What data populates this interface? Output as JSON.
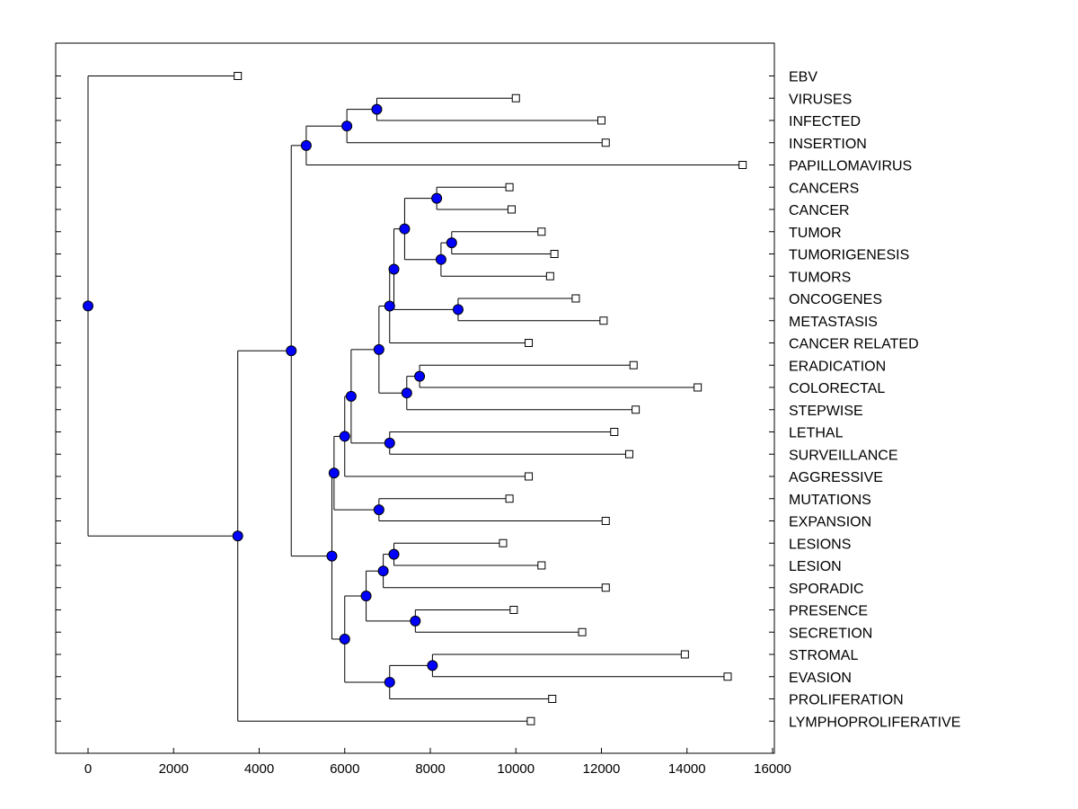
{
  "chart_data": {
    "type": "dendrogram",
    "title": "",
    "xlabel": "",
    "ylabel": "",
    "xlim": [
      -750,
      16000
    ],
    "xticks": [
      0,
      2000,
      4000,
      6000,
      8000,
      10000,
      12000,
      14000,
      16000
    ],
    "xtick_labels": [
      "0",
      "2000",
      "4000",
      "6000",
      "8000",
      "10000",
      "12000",
      "14000",
      "16000"
    ],
    "colors": {
      "node": "#0000ff",
      "line": "#000000",
      "leaf": "#ffffff"
    },
    "leaves": [
      {
        "label": "EBV",
        "value": 3500
      },
      {
        "label": "VIRUSES",
        "value": 10000
      },
      {
        "label": "INFECTED",
        "value": 12000
      },
      {
        "label": "INSERTION",
        "value": 12100
      },
      {
        "label": "PAPILLOMAVIRUS",
        "value": 15300
      },
      {
        "label": "CANCERS",
        "value": 9850
      },
      {
        "label": "CANCER",
        "value": 9900
      },
      {
        "label": "TUMOR",
        "value": 10600
      },
      {
        "label": "TUMORIGENESIS",
        "value": 10900
      },
      {
        "label": "TUMORS",
        "value": 10800
      },
      {
        "label": "ONCOGENES",
        "value": 11400
      },
      {
        "label": "METASTASIS",
        "value": 12050
      },
      {
        "label": "CANCER RELATED",
        "value": 10300
      },
      {
        "label": "ERADICATION",
        "value": 12750
      },
      {
        "label": "COLORECTAL",
        "value": 14250
      },
      {
        "label": "STEPWISE",
        "value": 12800
      },
      {
        "label": "LETHAL",
        "value": 12300
      },
      {
        "label": "SURVEILLANCE",
        "value": 12650
      },
      {
        "label": "AGGRESSIVE",
        "value": 10300
      },
      {
        "label": "MUTATIONS",
        "value": 9850
      },
      {
        "label": "EXPANSION",
        "value": 12100
      },
      {
        "label": "LESIONS",
        "value": 9700
      },
      {
        "label": "LESION",
        "value": 10600
      },
      {
        "label": "SPORADIC",
        "value": 12100
      },
      {
        "label": "PRESENCE",
        "value": 9950
      },
      {
        "label": "SECRETION",
        "value": 11550
      },
      {
        "label": "STROMAL",
        "value": 13950
      },
      {
        "label": "EVASION",
        "value": 14950
      },
      {
        "label": "PROLIFERATION",
        "value": 10850
      },
      {
        "label": "LYMPHOPROLIFERATIVE",
        "value": 10350
      }
    ],
    "merges": [
      {
        "id": "n1",
        "value": 6750,
        "children": [
          "VIRUSES",
          "INFECTED"
        ]
      },
      {
        "id": "n2",
        "value": 6050,
        "children": [
          "n1",
          "INSERTION"
        ]
      },
      {
        "id": "n3",
        "value": 5100,
        "children": [
          "n2",
          "PAPILLOMAVIRUS"
        ]
      },
      {
        "id": "n4",
        "value": 8150,
        "children": [
          "CANCERS",
          "CANCER"
        ]
      },
      {
        "id": "n5",
        "value": 8500,
        "children": [
          "TUMOR",
          "TUMORIGENESIS"
        ]
      },
      {
        "id": "n6",
        "value": 8250,
        "children": [
          "n5",
          "TUMORS"
        ]
      },
      {
        "id": "n7",
        "value": 7400,
        "children": [
          "n4",
          "n6"
        ]
      },
      {
        "id": "n8",
        "value": 8650,
        "children": [
          "ONCOGENES",
          "METASTASIS"
        ]
      },
      {
        "id": "n9",
        "value": 7150,
        "children": [
          "n7",
          "n8"
        ]
      },
      {
        "id": "n10",
        "value": 7050,
        "children": [
          "n9",
          "CANCER RELATED"
        ]
      },
      {
        "id": "n11",
        "value": 7750,
        "children": [
          "ERADICATION",
          "COLORECTAL"
        ]
      },
      {
        "id": "n12",
        "value": 7450,
        "children": [
          "n11",
          "STEPWISE"
        ]
      },
      {
        "id": "n13",
        "value": 6800,
        "children": [
          "n10",
          "n12"
        ]
      },
      {
        "id": "n14",
        "value": 7050,
        "children": [
          "LETHAL",
          "SURVEILLANCE"
        ]
      },
      {
        "id": "n15",
        "value": 6150,
        "children": [
          "n13",
          "n14"
        ]
      },
      {
        "id": "n16",
        "value": 6000,
        "children": [
          "n15",
          "AGGRESSIVE"
        ]
      },
      {
        "id": "n17",
        "value": 6800,
        "children": [
          "MUTATIONS",
          "EXPANSION"
        ]
      },
      {
        "id": "n18",
        "value": 5750,
        "children": [
          "n16",
          "n17"
        ]
      },
      {
        "id": "n19",
        "value": 7150,
        "children": [
          "LESIONS",
          "LESION"
        ]
      },
      {
        "id": "n20",
        "value": 6900,
        "children": [
          "n19",
          "SPORADIC"
        ]
      },
      {
        "id": "n21",
        "value": 7650,
        "children": [
          "PRESENCE",
          "SECRETION"
        ]
      },
      {
        "id": "n22",
        "value": 6500,
        "children": [
          "n20",
          "n21"
        ]
      },
      {
        "id": "n23",
        "value": 8050,
        "children": [
          "STROMAL",
          "EVASION"
        ]
      },
      {
        "id": "n24",
        "value": 7050,
        "children": [
          "n23",
          "PROLIFERATION"
        ]
      },
      {
        "id": "n25",
        "value": 6000,
        "children": [
          "n22",
          "n24"
        ]
      },
      {
        "id": "n26",
        "value": 5700,
        "children": [
          "n18",
          "n25"
        ]
      },
      {
        "id": "n27",
        "value": 4750,
        "children": [
          "n3",
          "n26"
        ]
      },
      {
        "id": "n28",
        "value": 3500,
        "children": [
          "n27",
          "LYMPHOPROLIFERATIVE"
        ]
      },
      {
        "id": "n29",
        "value": 0,
        "children": [
          "EBV",
          "n28"
        ]
      }
    ]
  }
}
